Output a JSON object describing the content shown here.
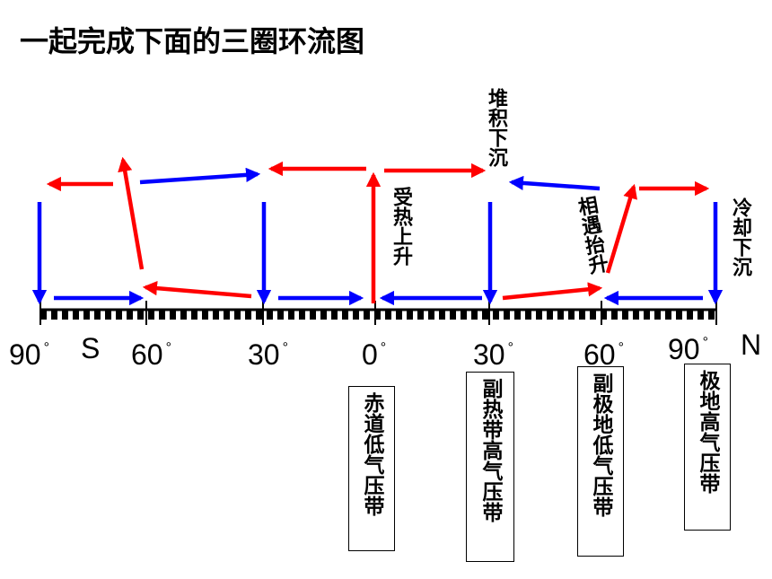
{
  "title": "一起完成下面的三圈环流图",
  "hemispheres": {
    "south": "S",
    "north": "N"
  },
  "latitudes": [
    {
      "value": "90",
      "symbol": "°"
    },
    {
      "value": "60",
      "symbol": "°"
    },
    {
      "value": "30",
      "symbol": "°"
    },
    {
      "value": "0",
      "symbol": "°"
    },
    {
      "value": "30",
      "symbol": "°"
    },
    {
      "value": "60",
      "symbol": "°"
    },
    {
      "value": "90",
      "symbol": "°"
    }
  ],
  "motion_labels": {
    "sink_30n": "堆积下沉",
    "rise_equator": "受热上升",
    "rise_60n": "相遇抬升",
    "sink_90n": "冷却下沉"
  },
  "pressure_belts": {
    "equatorial_low": "赤道低气压带",
    "subtropical_high": "副热带高气压带",
    "subpolar_low": "副极地低气压带",
    "polar_high": "极地高气压带"
  },
  "colors": {
    "warm_arrow": "#ff0000",
    "cold_arrow": "#0000ff",
    "axis": "#000000"
  }
}
